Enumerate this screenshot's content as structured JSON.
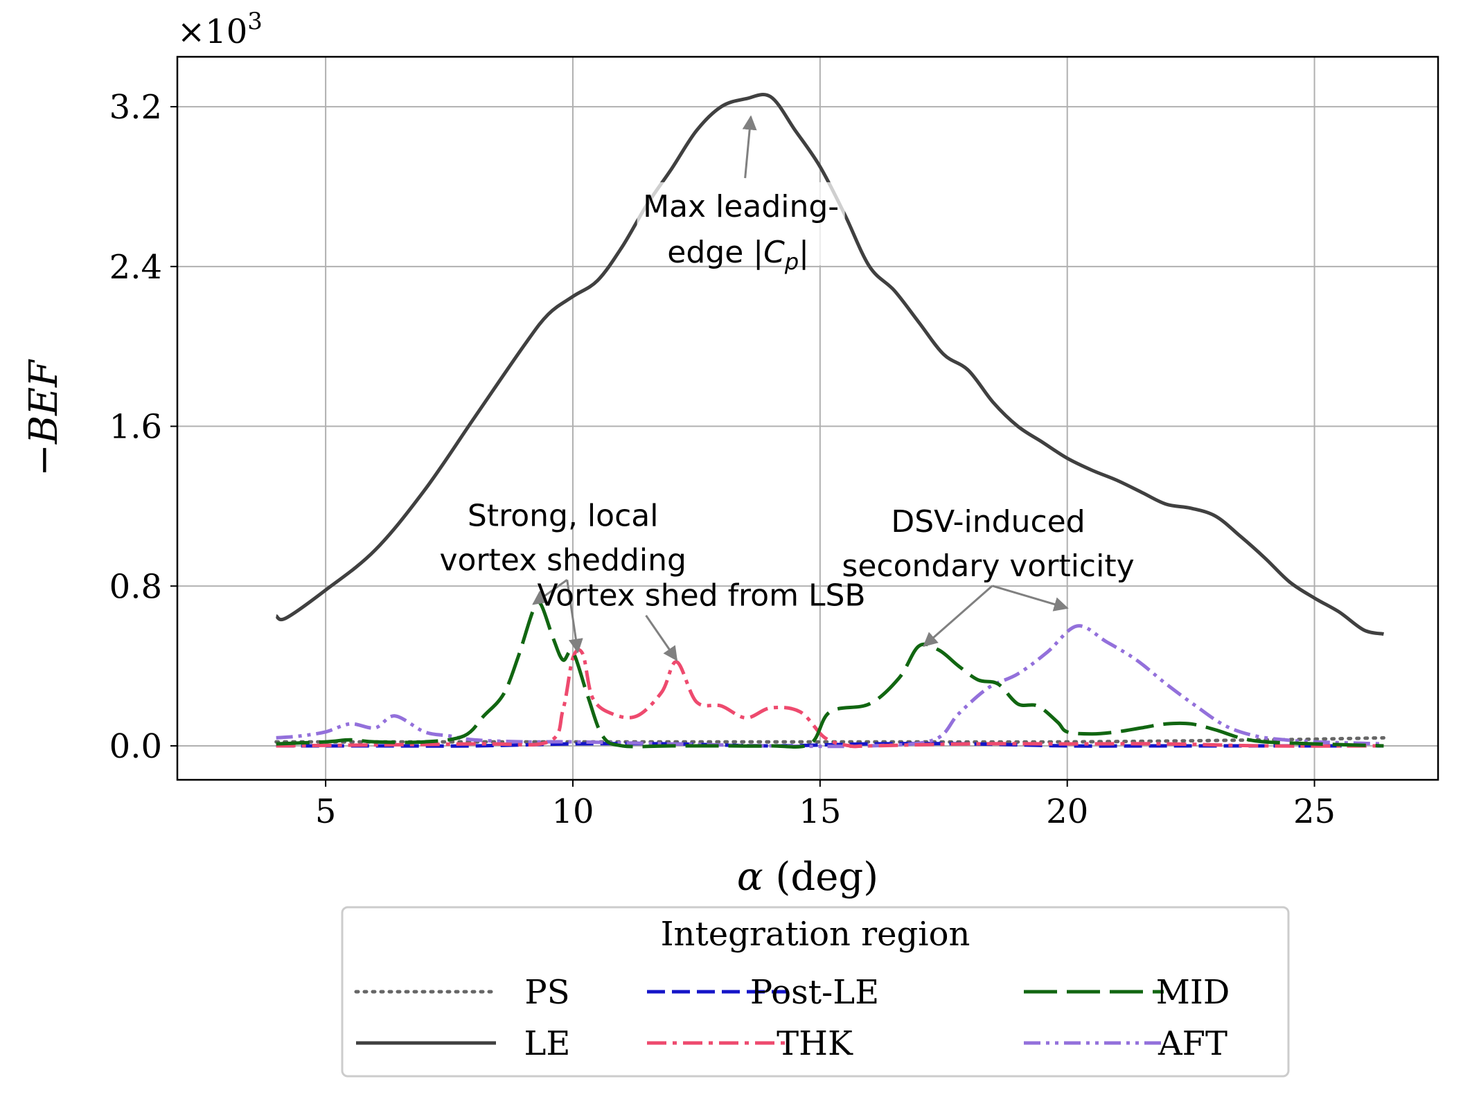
{
  "chart_data": {
    "type": "line",
    "xlabel_symbol": "α",
    "xlabel_unit": " (deg)",
    "ylabel_prefix": "−",
    "ylabel": "BEF",
    "y_multiplier_base": "×10",
    "y_multiplier_exp": "3",
    "xlim": [
      2.0,
      27.5
    ],
    "ylim": [
      -0.17,
      3.45
    ],
    "x_ticks": [
      5,
      10,
      15,
      20,
      25
    ],
    "x_tick_labels": [
      "5",
      "10",
      "15",
      "20",
      "25"
    ],
    "y_ticks": [
      0.0,
      0.8,
      1.6,
      2.4,
      3.2
    ],
    "y_tick_labels": [
      "0.0",
      "0.8",
      "1.6",
      "2.4",
      "3.2"
    ],
    "grid": true,
    "legend": {
      "title": "Integration region",
      "placement": "bottom-center, below axes",
      "columns": 3
    },
    "series": [
      {
        "name": "PS",
        "color": "#666666",
        "dash": "dotted",
        "x": [
          4,
          8,
          12,
          16,
          20,
          24,
          26.4
        ],
        "y": [
          0.02,
          0.02,
          0.02,
          0.02,
          0.02,
          0.03,
          0.04
        ]
      },
      {
        "name": "LE",
        "color": "#404040",
        "dash": "solid",
        "x": [
          4.0,
          4.2,
          5,
          6,
          7,
          8,
          9,
          9.5,
          10,
          10.5,
          11,
          11.5,
          12,
          12.5,
          13,
          13.5,
          14,
          14.5,
          15,
          15.5,
          16,
          16.5,
          17,
          17.5,
          18,
          18.5,
          19,
          19.5,
          20,
          20.5,
          21,
          21.5,
          22,
          22.5,
          23,
          23.5,
          24,
          24.5,
          25,
          25.5,
          26,
          26.4
        ],
        "y": [
          0.65,
          0.64,
          0.78,
          0.98,
          1.28,
          1.64,
          2.0,
          2.16,
          2.25,
          2.33,
          2.5,
          2.71,
          2.89,
          3.08,
          3.2,
          3.24,
          3.25,
          3.08,
          2.9,
          2.66,
          2.4,
          2.28,
          2.12,
          1.96,
          1.88,
          1.72,
          1.6,
          1.52,
          1.44,
          1.38,
          1.33,
          1.27,
          1.21,
          1.19,
          1.15,
          1.05,
          0.94,
          0.82,
          0.74,
          0.67,
          0.58,
          0.56
        ]
      },
      {
        "name": "Post-LE",
        "color": "#1515c8",
        "dash": "dashed",
        "x": [
          4,
          6,
          8,
          10,
          12,
          14,
          16,
          18,
          20,
          22,
          24,
          26.4
        ],
        "y": [
          0.0,
          0.0,
          0.0,
          0.01,
          0.01,
          0.0,
          0.01,
          0.01,
          0.0,
          0.0,
          0.0,
          0.0
        ]
      },
      {
        "name": "MID",
        "color": "#116611",
        "dash": "longdash",
        "x": [
          4,
          5,
          5.5,
          6,
          7,
          7.8,
          8.2,
          8.6,
          8.9,
          9.2,
          9.35,
          9.6,
          9.8,
          10.0,
          10.3,
          10.6,
          11,
          12,
          13,
          14,
          14.8,
          15.2,
          16,
          16.6,
          17.0,
          17.4,
          17.8,
          18.2,
          18.6,
          19.0,
          19.4,
          19.8,
          20.0,
          20.5,
          21,
          21.5,
          22,
          22.5,
          23,
          23.5,
          24,
          25,
          26.4
        ],
        "y": [
          0.01,
          0.02,
          0.03,
          0.02,
          0.02,
          0.05,
          0.15,
          0.26,
          0.45,
          0.68,
          0.71,
          0.54,
          0.43,
          0.47,
          0.25,
          0.05,
          0.0,
          0.0,
          0.0,
          0.0,
          0.01,
          0.17,
          0.21,
          0.34,
          0.5,
          0.48,
          0.4,
          0.33,
          0.31,
          0.21,
          0.2,
          0.12,
          0.07,
          0.06,
          0.07,
          0.09,
          0.11,
          0.11,
          0.08,
          0.04,
          0.02,
          0.01,
          0.0
        ]
      },
      {
        "name": "THK",
        "color": "#ee4a6e",
        "dash": "dashdot",
        "x": [
          4,
          8,
          9.5,
          9.8,
          10.0,
          10.2,
          10.4,
          10.8,
          11.3,
          11.8,
          12.1,
          12.5,
          13.0,
          13.5,
          14.0,
          14.6,
          15.1,
          15.6,
          16,
          18,
          20,
          22,
          24,
          26.4
        ],
        "y": [
          0.0,
          0.01,
          0.02,
          0.18,
          0.44,
          0.46,
          0.24,
          0.16,
          0.15,
          0.27,
          0.42,
          0.22,
          0.2,
          0.14,
          0.19,
          0.17,
          0.04,
          0.0,
          0.0,
          0.01,
          0.01,
          0.01,
          0.0,
          0.0
        ]
      },
      {
        "name": "AFT",
        "color": "#9370db",
        "dash": "dashdotdot",
        "x": [
          4,
          4.5,
          5,
          5.5,
          6,
          6.4,
          7,
          7.5,
          8,
          9,
          10,
          12,
          14,
          16,
          17.3,
          17.8,
          18.4,
          19.0,
          19.6,
          20.2,
          20.8,
          21.4,
          22.0,
          22.6,
          23.2,
          23.8,
          24.4,
          25,
          26.4
        ],
        "y": [
          0.04,
          0.05,
          0.07,
          0.11,
          0.09,
          0.15,
          0.07,
          0.05,
          0.03,
          0.02,
          0.02,
          0.01,
          0.0,
          0.0,
          0.03,
          0.16,
          0.29,
          0.36,
          0.47,
          0.6,
          0.52,
          0.43,
          0.31,
          0.2,
          0.1,
          0.05,
          0.03,
          0.02,
          0.01
        ]
      }
    ],
    "annotations": [
      {
        "lines": [
          "Max leading-",
          "edge |",
          "C",
          "p",
          "|"
        ],
        "target": [
          13.6,
          3.15
        ],
        "text_at": [
          13.4,
          2.6
        ]
      },
      {
        "lines": [
          "Strong, local",
          "vortex shedding"
        ],
        "targets": [
          [
            9.2,
            0.71
          ],
          [
            10.1,
            0.47
          ]
        ],
        "text_at": [
          9.8,
          1.06
        ]
      },
      {
        "lines": [
          "Vortex shed from LSB"
        ],
        "target": [
          12.1,
          0.43
        ],
        "text_at": [
          12.6,
          0.75
        ]
      },
      {
        "lines": [
          "DSV-induced",
          "secondary vorticity"
        ],
        "targets": [
          [
            17.1,
            0.5
          ],
          [
            20.0,
            0.69
          ]
        ],
        "text_at": [
          18.4,
          1.03
        ]
      }
    ]
  }
}
